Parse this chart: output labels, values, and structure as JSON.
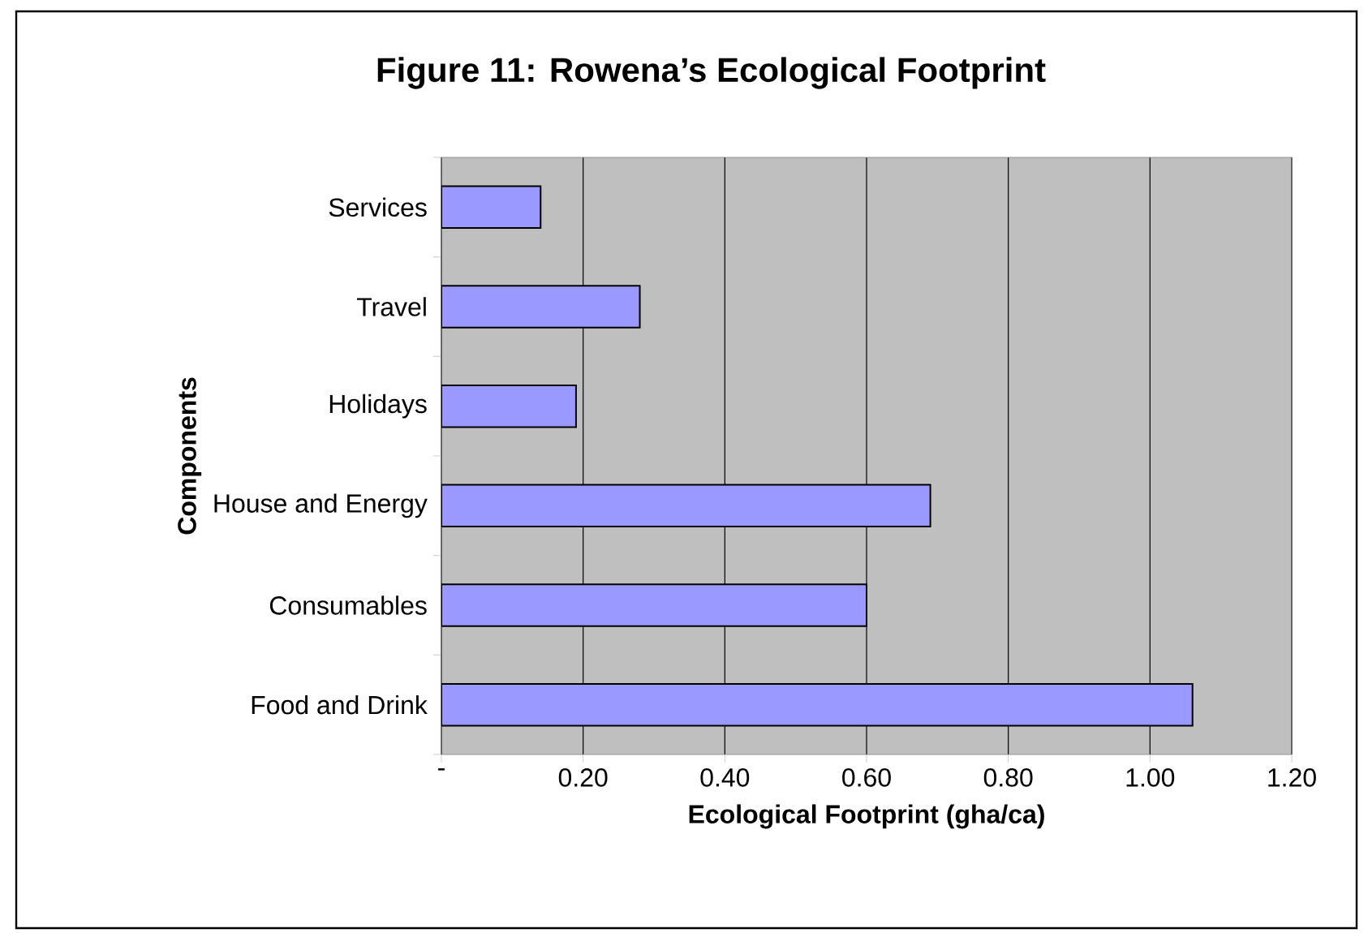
{
  "chart_data": {
    "type": "bar",
    "orientation": "horizontal",
    "title": "Figure 11: Rowena’s Ecological Footprint",
    "xlabel": "Ecological Footprint (gha/ca)",
    "ylabel": "Components",
    "categories": [
      "Services",
      "Travel",
      "Holidays",
      "House and Energy",
      "Consumables",
      "Food and Drink"
    ],
    "values": [
      0.14,
      0.28,
      0.19,
      0.69,
      0.6,
      1.06
    ],
    "color": "#9999ff",
    "xlim": [
      0,
      1.2
    ],
    "xticks": [
      {
        "value": 0,
        "label": "-"
      },
      {
        "value": 0.2,
        "label": "0.20"
      },
      {
        "value": 0.4,
        "label": "0.40"
      },
      {
        "value": 0.6,
        "label": "0.60"
      },
      {
        "value": 0.8,
        "label": "0.80"
      },
      {
        "value": 1.0,
        "label": "1.00"
      },
      {
        "value": 1.2,
        "label": "1.20"
      }
    ],
    "grid": "x"
  }
}
